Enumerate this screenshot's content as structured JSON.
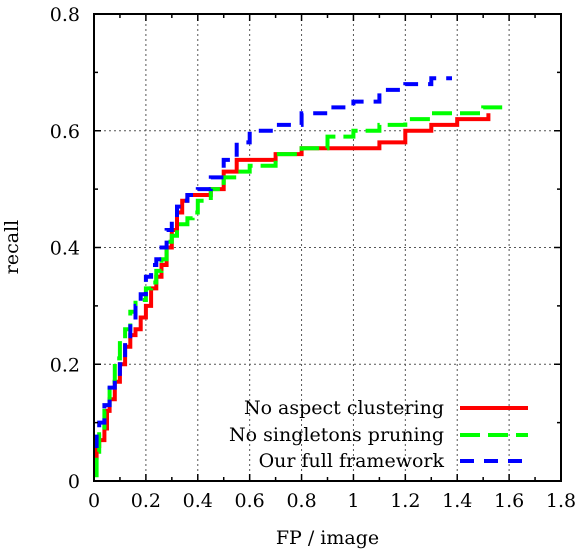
{
  "chart_data": {
    "type": "line",
    "title": "",
    "xlabel": "FP / image",
    "ylabel": "recall",
    "xlim": [
      0,
      1.8
    ],
    "ylim": [
      0,
      0.8
    ],
    "xticks": [
      "0",
      "0.2",
      "0.4",
      "0.6",
      "0.8",
      "1",
      "1.2",
      "1.4",
      "1.6",
      "1.8"
    ],
    "yticks": [
      "0",
      "0.2",
      "0.4",
      "0.6",
      "0.8"
    ],
    "grid": true,
    "legend_position": "bottom-right",
    "series": [
      {
        "name": "No aspect clustering",
        "color": "#ff0000",
        "dash": "solid",
        "x": [
          0,
          0.01,
          0.02,
          0.04,
          0.05,
          0.06,
          0.08,
          0.1,
          0.12,
          0.14,
          0.16,
          0.18,
          0.2,
          0.22,
          0.24,
          0.26,
          0.28,
          0.3,
          0.32,
          0.34,
          0.36,
          0.4,
          0.45,
          0.5,
          0.55,
          0.6,
          0.7,
          0.8,
          0.9,
          1.0,
          1.1,
          1.2,
          1.3,
          1.4,
          1.45,
          1.52
        ],
        "y": [
          0.04,
          0.06,
          0.07,
          0.09,
          0.12,
          0.14,
          0.17,
          0.2,
          0.23,
          0.25,
          0.26,
          0.28,
          0.3,
          0.33,
          0.35,
          0.37,
          0.4,
          0.43,
          0.46,
          0.48,
          0.49,
          0.49,
          0.5,
          0.53,
          0.55,
          0.55,
          0.56,
          0.57,
          0.57,
          0.57,
          0.58,
          0.6,
          0.61,
          0.62,
          0.62,
          0.63
        ]
      },
      {
        "name": "No singletons pruning",
        "color": "#00ff00",
        "dash": "dashed",
        "x": [
          0,
          0.01,
          0.02,
          0.04,
          0.06,
          0.08,
          0.1,
          0.12,
          0.14,
          0.16,
          0.18,
          0.2,
          0.22,
          0.24,
          0.26,
          0.28,
          0.3,
          0.32,
          0.34,
          0.36,
          0.38,
          0.4,
          0.45,
          0.5,
          0.55,
          0.6,
          0.7,
          0.8,
          0.9,
          1.0,
          1.1,
          1.2,
          1.3,
          1.4,
          1.5,
          1.58
        ],
        "y": [
          0.01,
          0.05,
          0.08,
          0.12,
          0.17,
          0.21,
          0.24,
          0.26,
          0.29,
          0.31,
          0.31,
          0.33,
          0.34,
          0.36,
          0.38,
          0.41,
          0.42,
          0.44,
          0.44,
          0.45,
          0.46,
          0.48,
          0.5,
          0.52,
          0.53,
          0.54,
          0.56,
          0.57,
          0.59,
          0.6,
          0.61,
          0.62,
          0.63,
          0.63,
          0.64,
          0.645
        ]
      },
      {
        "name": "Our full framework",
        "color": "#0000ff",
        "dash": "dashed",
        "x": [
          0,
          0.01,
          0.02,
          0.04,
          0.06,
          0.08,
          0.1,
          0.12,
          0.14,
          0.16,
          0.18,
          0.2,
          0.22,
          0.24,
          0.26,
          0.28,
          0.3,
          0.32,
          0.34,
          0.36,
          0.4,
          0.45,
          0.5,
          0.55,
          0.6,
          0.7,
          0.8,
          0.9,
          1.0,
          1.1,
          1.2,
          1.3,
          1.38
        ],
        "y": [
          0.06,
          0.08,
          0.1,
          0.13,
          0.16,
          0.18,
          0.2,
          0.24,
          0.27,
          0.3,
          0.32,
          0.35,
          0.37,
          0.38,
          0.4,
          0.43,
          0.45,
          0.47,
          0.48,
          0.49,
          0.5,
          0.52,
          0.55,
          0.58,
          0.6,
          0.61,
          0.63,
          0.64,
          0.65,
          0.67,
          0.68,
          0.69,
          0.69
        ]
      }
    ]
  }
}
